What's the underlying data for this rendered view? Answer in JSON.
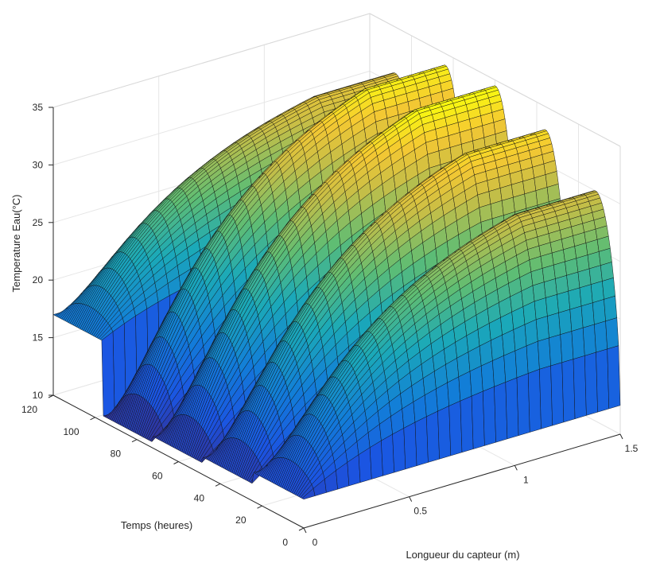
{
  "chart_data": {
    "type": "surface",
    "xlabel": "Longueur du capteur (m)",
    "ylabel": "Temps (heures)",
    "zlabel": "Temperature Eau(°C)",
    "xlim": [
      0,
      1.5
    ],
    "ylim": [
      0,
      120
    ],
    "zlim": [
      10,
      35
    ],
    "xticks": [
      "0",
      "0.5",
      "1",
      "1.5"
    ],
    "yticks": [
      "0",
      "20",
      "40",
      "60",
      "80",
      "100",
      "120"
    ],
    "zticks": [
      "10",
      "15",
      "20",
      "25",
      "30",
      "35"
    ],
    "grid": true,
    "colormap": "parula",
    "day_cycles": [
      {
        "t_start": 0,
        "t_end": 24,
        "T_inlet": 12.5,
        "T_max": 30.0
      },
      {
        "t_start": 24,
        "t_end": 48,
        "T_inlet": 11.5,
        "T_max": 33.0
      },
      {
        "t_start": 48,
        "t_end": 72,
        "T_inlet": 11.0,
        "T_max": 34.5
      },
      {
        "t_start": 72,
        "t_end": 96,
        "T_inlet": 10.5,
        "T_max": 34.0
      },
      {
        "t_start": 96,
        "t_end": 120,
        "T_inlet": 17.0,
        "T_max": 31.0
      }
    ]
  }
}
